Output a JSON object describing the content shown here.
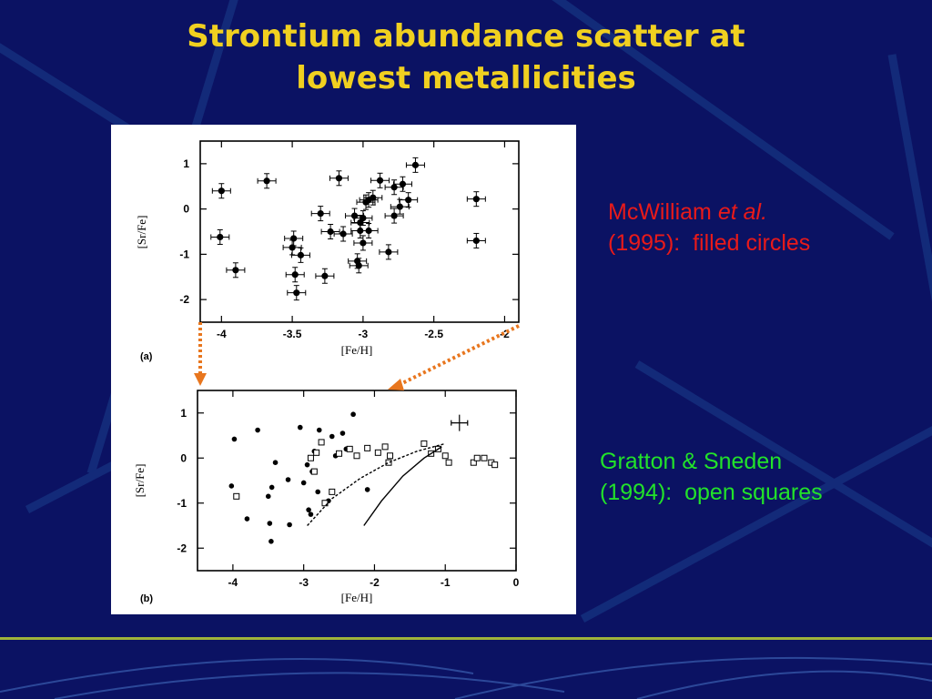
{
  "slide": {
    "title_line1": "Strontium abundance scatter at",
    "title_line2": "lowest metallicities",
    "colors": {
      "background": "#0b1263",
      "title": "#f0d020",
      "mcwilliam_text": "#e81a1a",
      "gratton_text": "#22e22a",
      "arrow": "#e8761e",
      "bottom_bar": "#9fb33a"
    },
    "annotation_mcwilliam": {
      "line1_a": "McWilliam ",
      "line1_b": "et al.",
      "line2": "(1995):  filled circles"
    },
    "annotation_gratton": {
      "line1": "Gratton & Sneden",
      "line2": "(1994):  open squares"
    }
  },
  "chart_data": [
    {
      "type": "scatter",
      "panel_label": "(a)",
      "xlabel": "[Fe/H]",
      "ylabel": "[Sr/Fe]",
      "xlim": [
        -4.15,
        -1.9
      ],
      "ylim": [
        -2.5,
        1.5
      ],
      "xticks": [
        "-4",
        "-3.5",
        "-3",
        "-2.5",
        "-2"
      ],
      "xtick_values": [
        -4,
        -3.5,
        -3,
        -2.5,
        -2
      ],
      "yticks": [
        "1",
        "0",
        "-1",
        "-2"
      ],
      "ytick_values": [
        1,
        0,
        -1,
        -2
      ],
      "series": [
        {
          "marker": "filled-circle-errorbars",
          "points": [
            [
              -4.0,
              0.4
            ],
            [
              -4.01,
              -0.62
            ],
            [
              -3.9,
              -1.35
            ],
            [
              -3.68,
              0.62
            ],
            [
              -3.5,
              -0.85
            ],
            [
              -3.49,
              -0.65
            ],
            [
              -3.48,
              -1.45
            ],
            [
              -3.47,
              -1.85
            ],
            [
              -3.44,
              -1.02
            ],
            [
              -3.3,
              -0.1
            ],
            [
              -3.27,
              -1.48
            ],
            [
              -3.23,
              -0.5
            ],
            [
              -3.17,
              0.68
            ],
            [
              -3.14,
              -0.55
            ],
            [
              -3.06,
              -0.15
            ],
            [
              -3.04,
              -1.15
            ],
            [
              -3.03,
              -1.25
            ],
            [
              -3.02,
              -0.48
            ],
            [
              -3.02,
              -0.3
            ],
            [
              -3.0,
              -0.2
            ],
            [
              -3.0,
              -0.75
            ],
            [
              -2.98,
              0.15
            ],
            [
              -2.96,
              0.2
            ],
            [
              -2.96,
              -0.48
            ],
            [
              -2.93,
              0.25
            ],
            [
              -2.88,
              0.63
            ],
            [
              -2.82,
              -0.95
            ],
            [
              -2.78,
              -0.15
            ],
            [
              -2.78,
              0.48
            ],
            [
              -2.74,
              0.05
            ],
            [
              -2.72,
              0.55
            ],
            [
              -2.68,
              0.2
            ],
            [
              -2.63,
              0.97
            ],
            [
              -2.2,
              0.22
            ],
            [
              -2.2,
              -0.7
            ]
          ]
        }
      ]
    },
    {
      "type": "scatter",
      "panel_label": "(b)",
      "xlabel": "[Fe/H]",
      "ylabel": "[Sr/Fe]",
      "xlim": [
        -4.5,
        0.0
      ],
      "ylim": [
        -2.5,
        1.5
      ],
      "xticks": [
        "-4",
        "-3",
        "-2",
        "-1",
        "0"
      ],
      "xtick_values": [
        -4,
        -3,
        -2,
        -1,
        0
      ],
      "yticks": [
        "1",
        "0",
        "-1",
        "-2"
      ],
      "ytick_values": [
        1,
        0,
        -1,
        -2
      ],
      "series": [
        {
          "marker": "filled-circle",
          "points": [
            [
              -3.98,
              0.42
            ],
            [
              -4.02,
              -0.62
            ],
            [
              -3.8,
              -1.35
            ],
            [
              -3.65,
              0.62
            ],
            [
              -3.5,
              -0.85
            ],
            [
              -3.48,
              -1.45
            ],
            [
              -3.46,
              -1.85
            ],
            [
              -3.45,
              -0.65
            ],
            [
              -3.4,
              -0.1
            ],
            [
              -3.2,
              -1.48
            ],
            [
              -3.22,
              -0.48
            ],
            [
              -3.05,
              0.68
            ],
            [
              -3.0,
              -0.55
            ],
            [
              -2.95,
              -0.15
            ],
            [
              -2.93,
              -1.15
            ],
            [
              -2.9,
              -1.25
            ],
            [
              -2.88,
              -0.3
            ],
            [
              -2.85,
              0.15
            ],
            [
              -2.8,
              -0.75
            ],
            [
              -2.78,
              0.62
            ],
            [
              -2.65,
              -0.95
            ],
            [
              -2.6,
              0.48
            ],
            [
              -2.55,
              0.05
            ],
            [
              -2.45,
              0.55
            ],
            [
              -2.4,
              0.2
            ],
            [
              -2.3,
              0.97
            ],
            [
              -2.1,
              -0.7
            ]
          ]
        },
        {
          "marker": "open-square",
          "points": [
            [
              -3.95,
              -0.85
            ],
            [
              -2.9,
              0.0
            ],
            [
              -2.85,
              -0.3
            ],
            [
              -2.82,
              0.12
            ],
            [
              -2.75,
              0.35
            ],
            [
              -2.7,
              -1.0
            ],
            [
              -2.6,
              -0.75
            ],
            [
              -2.5,
              0.1
            ],
            [
              -2.35,
              0.2
            ],
            [
              -2.25,
              0.05
            ],
            [
              -2.1,
              0.22
            ],
            [
              -1.95,
              0.12
            ],
            [
              -1.85,
              0.25
            ],
            [
              -1.8,
              -0.1
            ],
            [
              -1.78,
              0.05
            ],
            [
              -1.3,
              0.32
            ],
            [
              -1.2,
              0.1
            ],
            [
              -1.1,
              0.2
            ],
            [
              -1.0,
              0.05
            ],
            [
              -0.95,
              -0.1
            ],
            [
              -0.6,
              -0.1
            ],
            [
              -0.55,
              0.0
            ],
            [
              -0.45,
              0.0
            ],
            [
              -0.35,
              -0.1
            ],
            [
              -0.3,
              -0.15
            ]
          ]
        },
        {
          "marker": "dashed-line",
          "points": [
            [
              -2.95,
              -1.5
            ],
            [
              -2.6,
              -0.9
            ],
            [
              -2.2,
              -0.45
            ],
            [
              -1.8,
              -0.1
            ],
            [
              -1.4,
              0.15
            ],
            [
              -1.0,
              0.32
            ]
          ]
        },
        {
          "marker": "solid-line",
          "points": [
            [
              -2.15,
              -1.5
            ],
            [
              -1.9,
              -0.95
            ],
            [
              -1.6,
              -0.4
            ],
            [
              -1.3,
              0.0
            ],
            [
              -1.05,
              0.25
            ]
          ]
        },
        {
          "marker": "error-cross",
          "points": [
            [
              -0.8,
              0.78
            ]
          ]
        }
      ]
    }
  ]
}
